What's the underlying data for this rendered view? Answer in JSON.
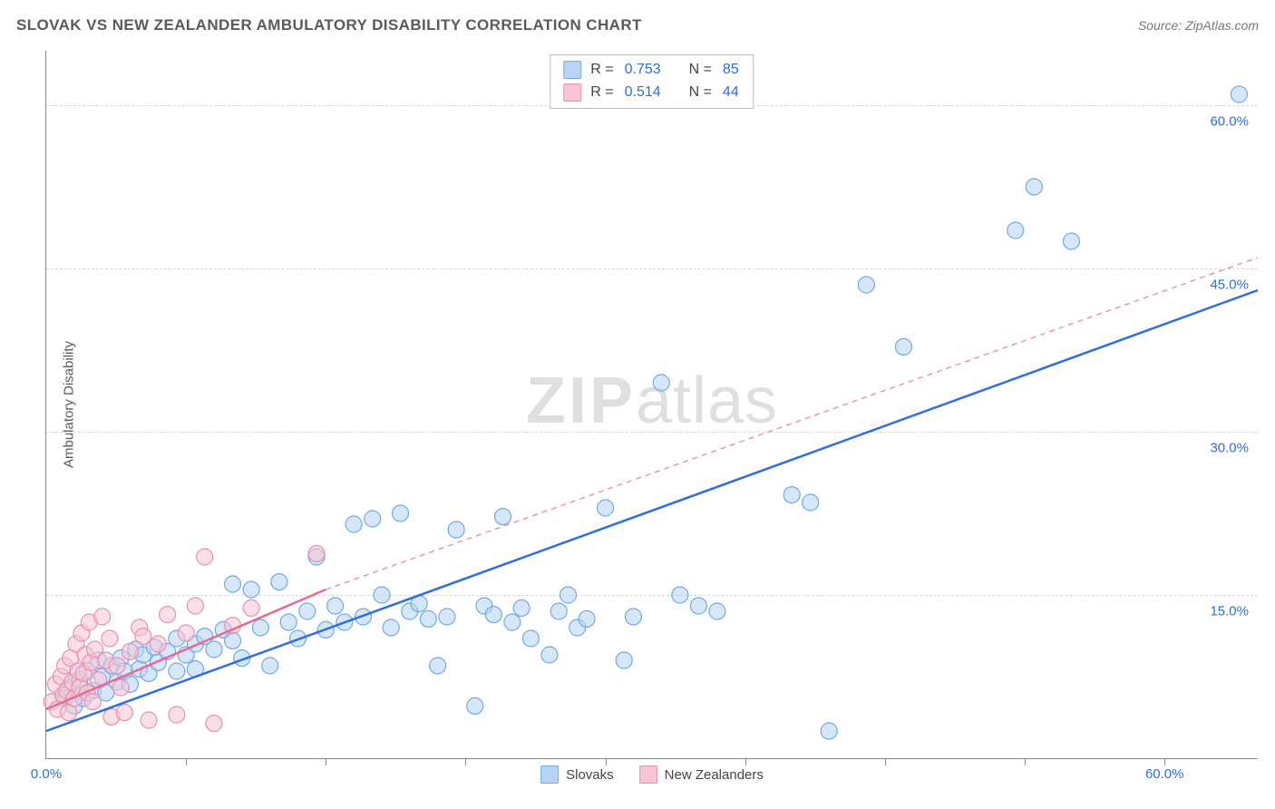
{
  "title": "SLOVAK VS NEW ZEALANDER AMBULATORY DISABILITY CORRELATION CHART",
  "source": "Source: ZipAtlas.com",
  "y_axis_label": "Ambulatory Disability",
  "watermark_zip": "ZIP",
  "watermark_atlas": "atlas",
  "chart": {
    "type": "scatter",
    "x_range": [
      0,
      65
    ],
    "y_range": [
      0,
      65
    ],
    "x_ticks": [
      0,
      7.5,
      15,
      22.5,
      30,
      37.5,
      45,
      52.5,
      60
    ],
    "y_ticks": [
      0,
      15,
      30,
      45,
      60
    ],
    "x_tick_labels": {
      "0": "0.0%",
      "60": "60.0%"
    },
    "y_tick_labels": {
      "15": "15.0%",
      "30": "30.0%",
      "45": "45.0%",
      "60": "60.0%"
    },
    "tick_label_color": "#2b6fe0",
    "grid_color": "#d6d6d6",
    "background_color": "#ffffff",
    "axis_color": "#888888"
  },
  "stats": [
    {
      "swatch_fill": "#b7d4f5",
      "swatch_stroke": "#6fa9e6",
      "r": "0.753",
      "n": "85"
    },
    {
      "swatch_fill": "#f6c5d4",
      "swatch_stroke": "#e88fae",
      "r": "0.514",
      "n": "44"
    }
  ],
  "stats_labels": {
    "r": "R =",
    "n": "N ="
  },
  "series": [
    {
      "name": "Slovaks",
      "color_fill": "#b7d4f5",
      "color_stroke": "#6fa9e6",
      "marker_radius": 9,
      "fill_opacity": 0.55,
      "trend": {
        "x1": 0,
        "y1": 2.5,
        "x2": 65,
        "y2": 43,
        "color": "#2b6fe0",
        "width": 2.5,
        "dash": ""
      },
      "points": [
        [
          1,
          5.5
        ],
        [
          1.2,
          6.5
        ],
        [
          1.5,
          4.8
        ],
        [
          1.8,
          7.2
        ],
        [
          2,
          5.5
        ],
        [
          2.2,
          8
        ],
        [
          2.5,
          6.2
        ],
        [
          2.8,
          9
        ],
        [
          3,
          7.5
        ],
        [
          3.2,
          6
        ],
        [
          3.5,
          8.5
        ],
        [
          3.8,
          7
        ],
        [
          4,
          9.2
        ],
        [
          4.2,
          8
        ],
        [
          4.5,
          6.8
        ],
        [
          4.8,
          10
        ],
        [
          5,
          8.2
        ],
        [
          5.2,
          9.5
        ],
        [
          5.5,
          7.8
        ],
        [
          5.8,
          10.2
        ],
        [
          6,
          8.8
        ],
        [
          6.5,
          9.8
        ],
        [
          7,
          8
        ],
        [
          7,
          11
        ],
        [
          7.5,
          9.5
        ],
        [
          8,
          10.5
        ],
        [
          8,
          8.2
        ],
        [
          8.5,
          11.2
        ],
        [
          9,
          10
        ],
        [
          9.5,
          11.8
        ],
        [
          10,
          16
        ],
        [
          10,
          10.8
        ],
        [
          10.5,
          9.2
        ],
        [
          11,
          15.5
        ],
        [
          11.5,
          12
        ],
        [
          12,
          8.5
        ],
        [
          12.5,
          16.2
        ],
        [
          13,
          12.5
        ],
        [
          13.5,
          11
        ],
        [
          14,
          13.5
        ],
        [
          14.5,
          18.5
        ],
        [
          15,
          11.8
        ],
        [
          15.5,
          14
        ],
        [
          16,
          12.5
        ],
        [
          16.5,
          21.5
        ],
        [
          17,
          13
        ],
        [
          17.5,
          22
        ],
        [
          18,
          15
        ],
        [
          18.5,
          12
        ],
        [
          19,
          22.5
        ],
        [
          19.5,
          13.5
        ],
        [
          20,
          14.2
        ],
        [
          20.5,
          12.8
        ],
        [
          21,
          8.5
        ],
        [
          21.5,
          13
        ],
        [
          22,
          21
        ],
        [
          23,
          4.8
        ],
        [
          23.5,
          14
        ],
        [
          24,
          13.2
        ],
        [
          24.5,
          22.2
        ],
        [
          25,
          12.5
        ],
        [
          25.5,
          13.8
        ],
        [
          26,
          11
        ],
        [
          27,
          9.5
        ],
        [
          27.5,
          13.5
        ],
        [
          28,
          15
        ],
        [
          28.5,
          12
        ],
        [
          29,
          12.8
        ],
        [
          30,
          23
        ],
        [
          31,
          9
        ],
        [
          31.5,
          13
        ],
        [
          33,
          34.5
        ],
        [
          34,
          15
        ],
        [
          35,
          14
        ],
        [
          36,
          13.5
        ],
        [
          40,
          24.2
        ],
        [
          41,
          23.5
        ],
        [
          42,
          2.5
        ],
        [
          44,
          43.5
        ],
        [
          46,
          37.8
        ],
        [
          52,
          48.5
        ],
        [
          53,
          52.5
        ],
        [
          55,
          47.5
        ],
        [
          64,
          61
        ]
      ]
    },
    {
      "name": "New Zealanders",
      "color_fill": "#f6c5d4",
      "color_stroke": "#e88fae",
      "marker_radius": 9,
      "fill_opacity": 0.55,
      "trend_solid": {
        "x1": 0,
        "y1": 4.5,
        "x2": 15,
        "y2": 15.5,
        "color": "#e56a94",
        "width": 2.5,
        "dash": ""
      },
      "trend_dash": {
        "x1": 15,
        "y1": 15.5,
        "x2": 65,
        "y2": 46,
        "color": "#e88fae",
        "width": 1.4,
        "dash": "6 5"
      },
      "points": [
        [
          0.3,
          5.2
        ],
        [
          0.5,
          6.8
        ],
        [
          0.6,
          4.5
        ],
        [
          0.8,
          7.5
        ],
        [
          0.9,
          5.8
        ],
        [
          1,
          8.5
        ],
        [
          1.1,
          6.2
        ],
        [
          1.2,
          4.2
        ],
        [
          1.3,
          9.2
        ],
        [
          1.4,
          7
        ],
        [
          1.5,
          5.5
        ],
        [
          1.6,
          10.5
        ],
        [
          1.7,
          8
        ],
        [
          1.8,
          6.5
        ],
        [
          1.9,
          11.5
        ],
        [
          2,
          7.8
        ],
        [
          2.1,
          9.5
        ],
        [
          2.2,
          6
        ],
        [
          2.3,
          12.5
        ],
        [
          2.4,
          8.8
        ],
        [
          2.5,
          5.2
        ],
        [
          2.6,
          10
        ],
        [
          2.8,
          7.2
        ],
        [
          3,
          13
        ],
        [
          3.2,
          9
        ],
        [
          3.4,
          11
        ],
        [
          3.5,
          3.8
        ],
        [
          3.8,
          8.5
        ],
        [
          4,
          6.5
        ],
        [
          4.2,
          4.2
        ],
        [
          4.5,
          9.8
        ],
        [
          5,
          12
        ],
        [
          5.2,
          11.2
        ],
        [
          5.5,
          3.5
        ],
        [
          6,
          10.5
        ],
        [
          6.5,
          13.2
        ],
        [
          7,
          4
        ],
        [
          7.5,
          11.5
        ],
        [
          8,
          14
        ],
        [
          8.5,
          18.5
        ],
        [
          9,
          3.2
        ],
        [
          10,
          12.2
        ],
        [
          11,
          13.8
        ],
        [
          14.5,
          18.8
        ]
      ]
    }
  ],
  "legend": [
    {
      "label": "Slovaks",
      "fill": "#b7d4f5",
      "stroke": "#6fa9e6"
    },
    {
      "label": "New Zealanders",
      "fill": "#f6c5d4",
      "stroke": "#e88fae"
    }
  ]
}
